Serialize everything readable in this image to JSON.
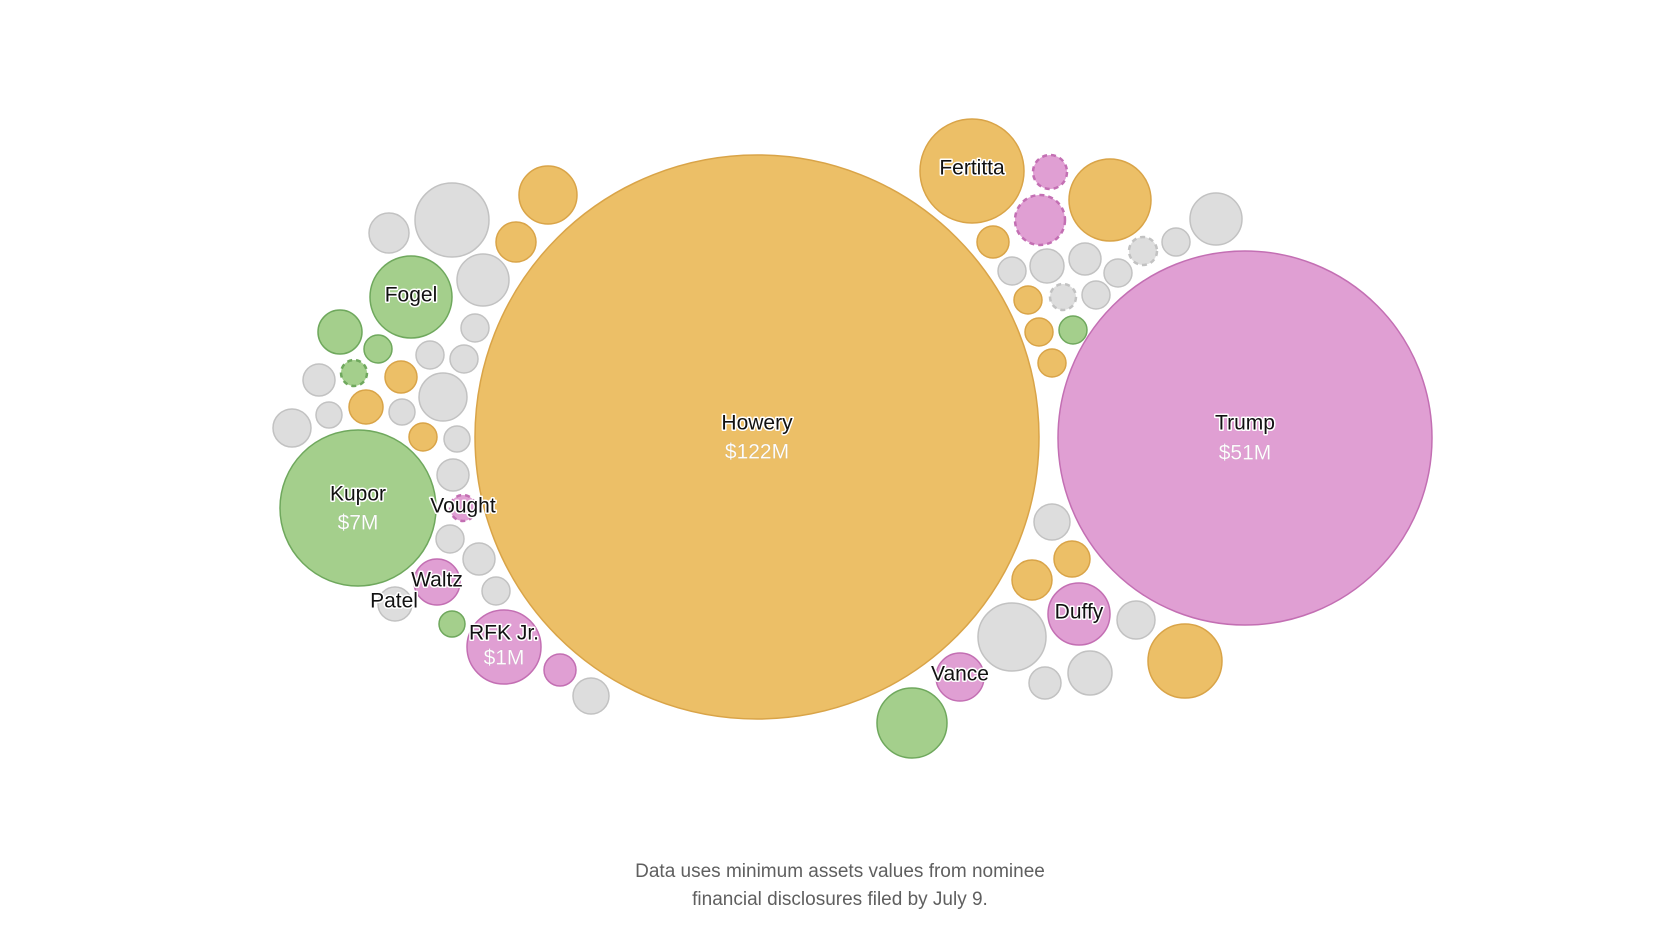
{
  "colors": {
    "orange": "#ecbf67",
    "pink": "#e09fd3",
    "green": "#a4cf8c",
    "gray": "#dddddd"
  },
  "chart_data": {
    "type": "packed-bubble",
    "value_unit": "minimum assets (USD)",
    "bubbles": [
      {
        "label": "Howery",
        "value_label": "$122M",
        "value": 122000000,
        "color": "orange"
      },
      {
        "label": "Trump",
        "value_label": "$51M",
        "value": 51000000,
        "color": "pink"
      },
      {
        "label": "Kupor",
        "value_label": "$7M",
        "value": 7000000,
        "color": "green"
      },
      {
        "label": "Fertitta",
        "value_label": "",
        "color": "orange"
      },
      {
        "label": "Fogel",
        "value_label": "",
        "color": "green"
      },
      {
        "label": "RFK Jr.",
        "value_label": "$1M",
        "value": 1000000,
        "color": "pink"
      },
      {
        "label": "Duffy",
        "value_label": "",
        "color": "pink"
      },
      {
        "label": "Waltz",
        "value_label": "",
        "color": "pink"
      },
      {
        "label": "Vance",
        "value_label": "",
        "color": "pink"
      },
      {
        "label": "Patel",
        "value_label": "",
        "color": "gray"
      },
      {
        "label": "Vought",
        "value_label": "",
        "color": "pink",
        "dashed": true
      }
    ]
  },
  "footnote": {
    "line1": "Data uses minimum assets values from nominee",
    "line2": "financial disclosures filed by July 9."
  }
}
